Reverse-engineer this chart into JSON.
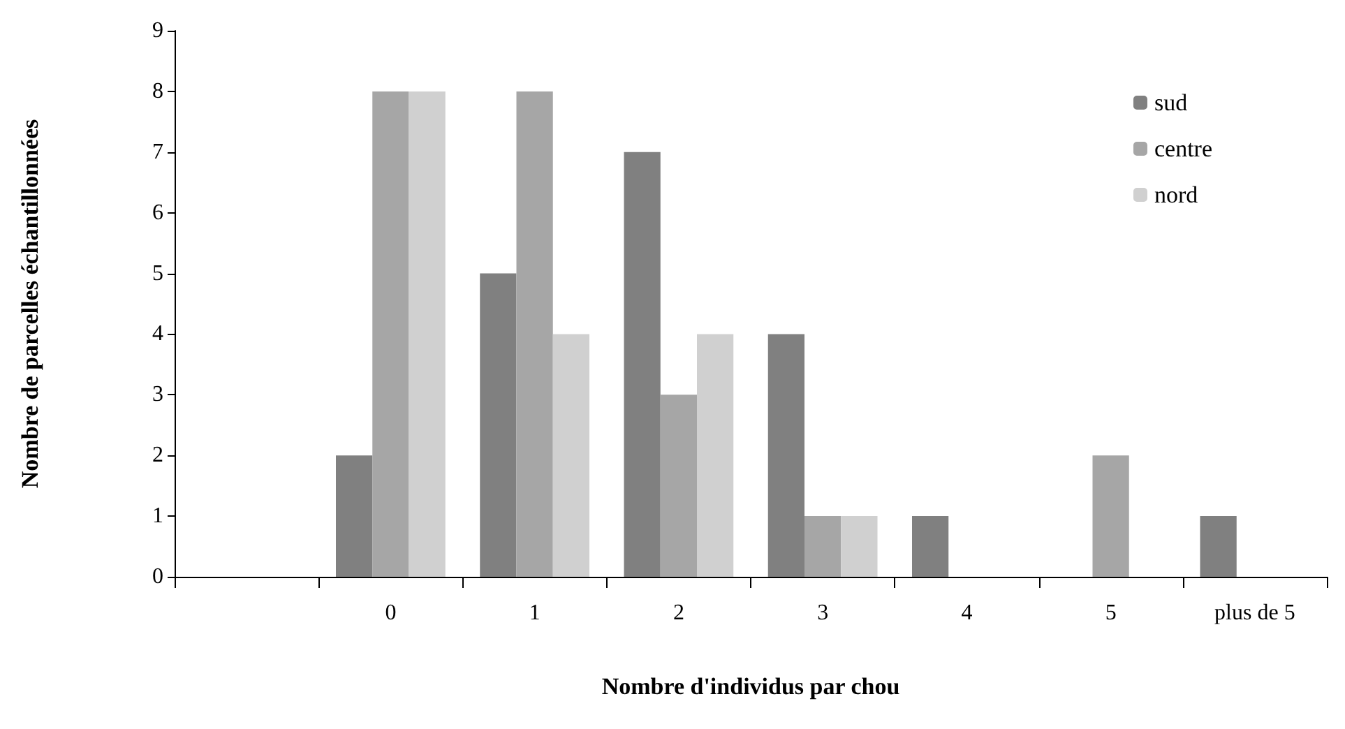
{
  "chart_data": {
    "type": "bar",
    "xlabel": "Nombre d'individus par chou",
    "ylabel": "Nombre de parcelles échantillonnées",
    "categories": [
      null,
      "0",
      "1",
      "2",
      "3",
      "4",
      "5",
      "plus de 5"
    ],
    "series": [
      {
        "name": "sud",
        "color": "#808080",
        "values": [
          null,
          2,
          5,
          7,
          4,
          1,
          0,
          1
        ]
      },
      {
        "name": "centre",
        "color": "#a6a6a6",
        "values": [
          null,
          8,
          8,
          3,
          1,
          0,
          2,
          0
        ]
      },
      {
        "name": "nord",
        "color": "#d0d0d0",
        "values": [
          null,
          8,
          4,
          4,
          1,
          0,
          0,
          0
        ]
      }
    ],
    "ylim": [
      0,
      9
    ],
    "yticks": [
      0,
      1,
      2,
      3,
      4,
      5,
      6,
      7,
      8,
      9
    ],
    "grid": false,
    "legend": "top right"
  }
}
